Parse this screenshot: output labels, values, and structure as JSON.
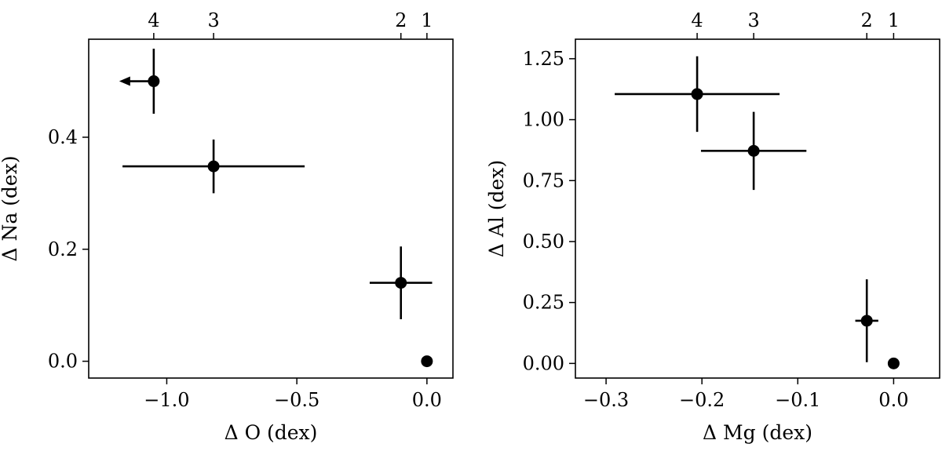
{
  "chart_data": [
    {
      "type": "scatter",
      "xlabel": "Δ O (dex)",
      "ylabel": "Δ Na (dex)",
      "xlim": [
        -1.3,
        0.1
      ],
      "ylim": [
        -0.03,
        0.575
      ],
      "xticks": [
        -1.0,
        -0.5,
        0.0
      ],
      "xtick_labels": [
        "−1.0",
        "−0.5",
        "0.0"
      ],
      "yticks": [
        0.0,
        0.2,
        0.4
      ],
      "ytick_labels": [
        "0.0",
        "0.2",
        "0.4"
      ],
      "top_axis_ticks": [
        -1.05,
        -0.82,
        -0.1,
        0.0
      ],
      "top_axis_labels": [
        "4",
        "3",
        "2",
        "1"
      ],
      "grid": false,
      "points": [
        {
          "label": "1",
          "x": 0.0,
          "y": 0.0
        },
        {
          "label": "2",
          "x": -0.1,
          "y": 0.14,
          "xerr": 0.12,
          "yerr": 0.065
        },
        {
          "label": "3",
          "x": -0.82,
          "y": 0.348,
          "xerr": 0.35,
          "yerr": 0.048
        },
        {
          "label": "4",
          "x": -1.05,
          "y": 0.5,
          "yerr": 0.058,
          "upper_limit_x": true
        }
      ]
    },
    {
      "type": "scatter",
      "xlabel": "Δ Mg (dex)",
      "ylabel": "Δ Al (dex)",
      "xlim": [
        -0.332,
        0.048
      ],
      "ylim": [
        -0.06,
        1.33
      ],
      "xticks": [
        -0.3,
        -0.2,
        -0.1,
        0.0
      ],
      "xtick_labels": [
        "−0.3",
        "−0.2",
        "−0.1",
        "0.0"
      ],
      "yticks": [
        0.0,
        0.25,
        0.5,
        0.75,
        1.0,
        1.25
      ],
      "ytick_labels": [
        "0.00",
        "0.25",
        "0.50",
        "0.75",
        "1.00",
        "1.25"
      ],
      "top_axis_ticks": [
        -0.205,
        -0.146,
        -0.028,
        0.0
      ],
      "top_axis_labels": [
        "4",
        "3",
        "2",
        "1"
      ],
      "grid": false,
      "points": [
        {
          "label": "1",
          "x": 0.0,
          "y": 0.0
        },
        {
          "label": "2",
          "x": -0.028,
          "y": 0.175,
          "xerr": 0.012,
          "yerr": 0.17
        },
        {
          "label": "3",
          "x": -0.146,
          "y": 0.872,
          "xerr": 0.055,
          "yerr": 0.16
        },
        {
          "label": "4",
          "x": -0.205,
          "y": 1.105,
          "xerr": 0.086,
          "yerr": 0.155
        }
      ]
    }
  ]
}
